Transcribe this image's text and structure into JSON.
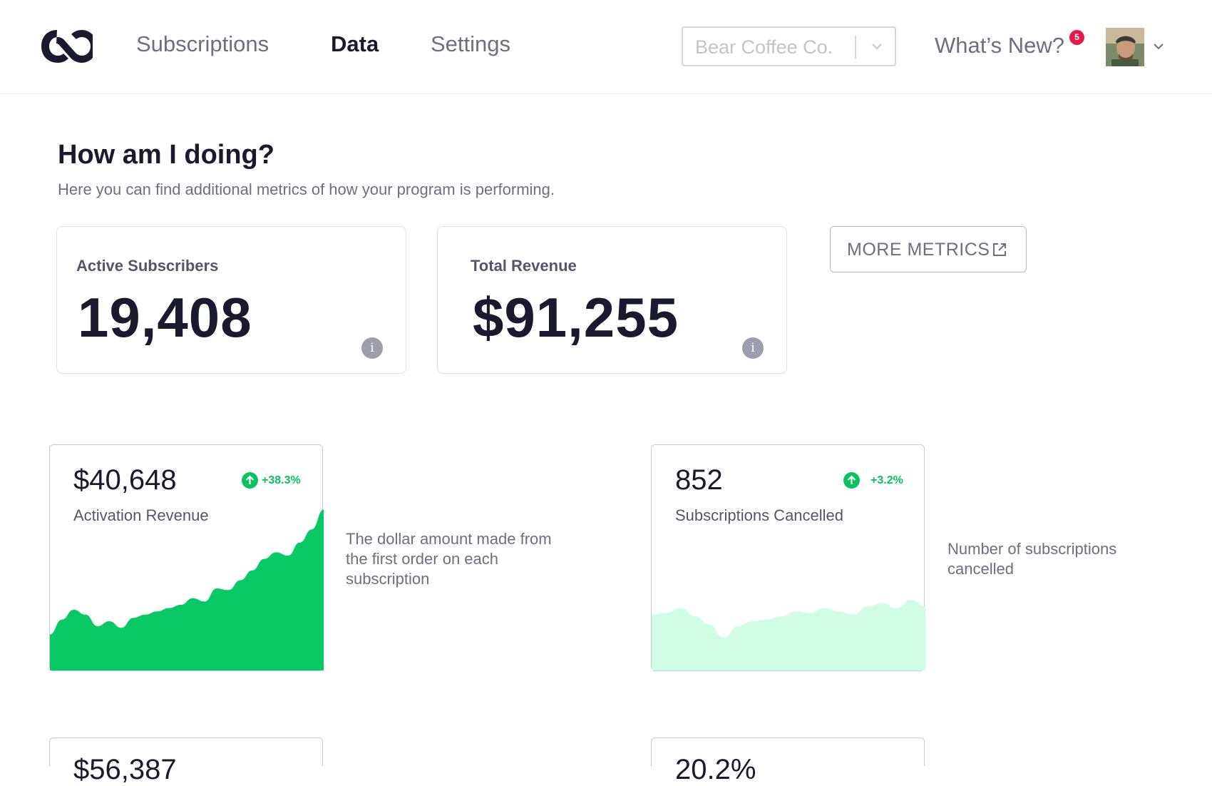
{
  "nav": {
    "items": [
      {
        "label": "Subscriptions",
        "active": false
      },
      {
        "label": "Data",
        "active": true
      },
      {
        "label": "Settings",
        "active": false
      }
    ]
  },
  "header": {
    "company_select": {
      "value": "Bear Coffee Co."
    },
    "whats_new": {
      "label": "What’s New?",
      "badge_count": "5"
    },
    "icons": [
      "logo-icon",
      "chevron-down-icon",
      "avatar",
      "external-link-icon",
      "info-icon",
      "arrow-up-icon"
    ]
  },
  "page": {
    "title": "How am I doing?",
    "subtitle": "Here you can find additional metrics of how your program is performing."
  },
  "stats": [
    {
      "label": "Active Subscribers",
      "value": "19,408"
    },
    {
      "label": "Total Revenue",
      "value": "$91,255"
    }
  ],
  "more_metrics": {
    "label": "MORE METRICS"
  },
  "metrics": [
    {
      "value": "$40,648",
      "label": "Activation Revenue",
      "trend": "+38.3%",
      "description": [
        "The dollar amount made from",
        "the first order on each",
        "subscription"
      ],
      "color": "#09c966",
      "series": [
        0.22,
        0.31,
        0.37,
        0.34,
        0.27,
        0.3,
        0.26,
        0.32,
        0.34,
        0.36,
        0.38,
        0.4,
        0.44,
        0.42,
        0.5,
        0.49,
        0.55,
        0.61,
        0.68,
        0.72,
        0.7,
        0.78,
        0.86,
        0.98
      ]
    },
    {
      "value": "852",
      "label": "Subscriptions Cancelled",
      "trend": "+3.2%",
      "description": [
        "Number of subscriptions",
        "cancelled"
      ],
      "color": "#cffde6",
      "series": [
        0.34,
        0.35,
        0.38,
        0.33,
        0.28,
        0.2,
        0.27,
        0.3,
        0.31,
        0.33,
        0.36,
        0.35,
        0.38,
        0.36,
        0.34,
        0.39,
        0.41,
        0.38,
        0.43,
        0.39
      ]
    }
  ],
  "partial_metrics": [
    {
      "value": "$56,387"
    },
    {
      "value": "20.2%"
    }
  ]
}
